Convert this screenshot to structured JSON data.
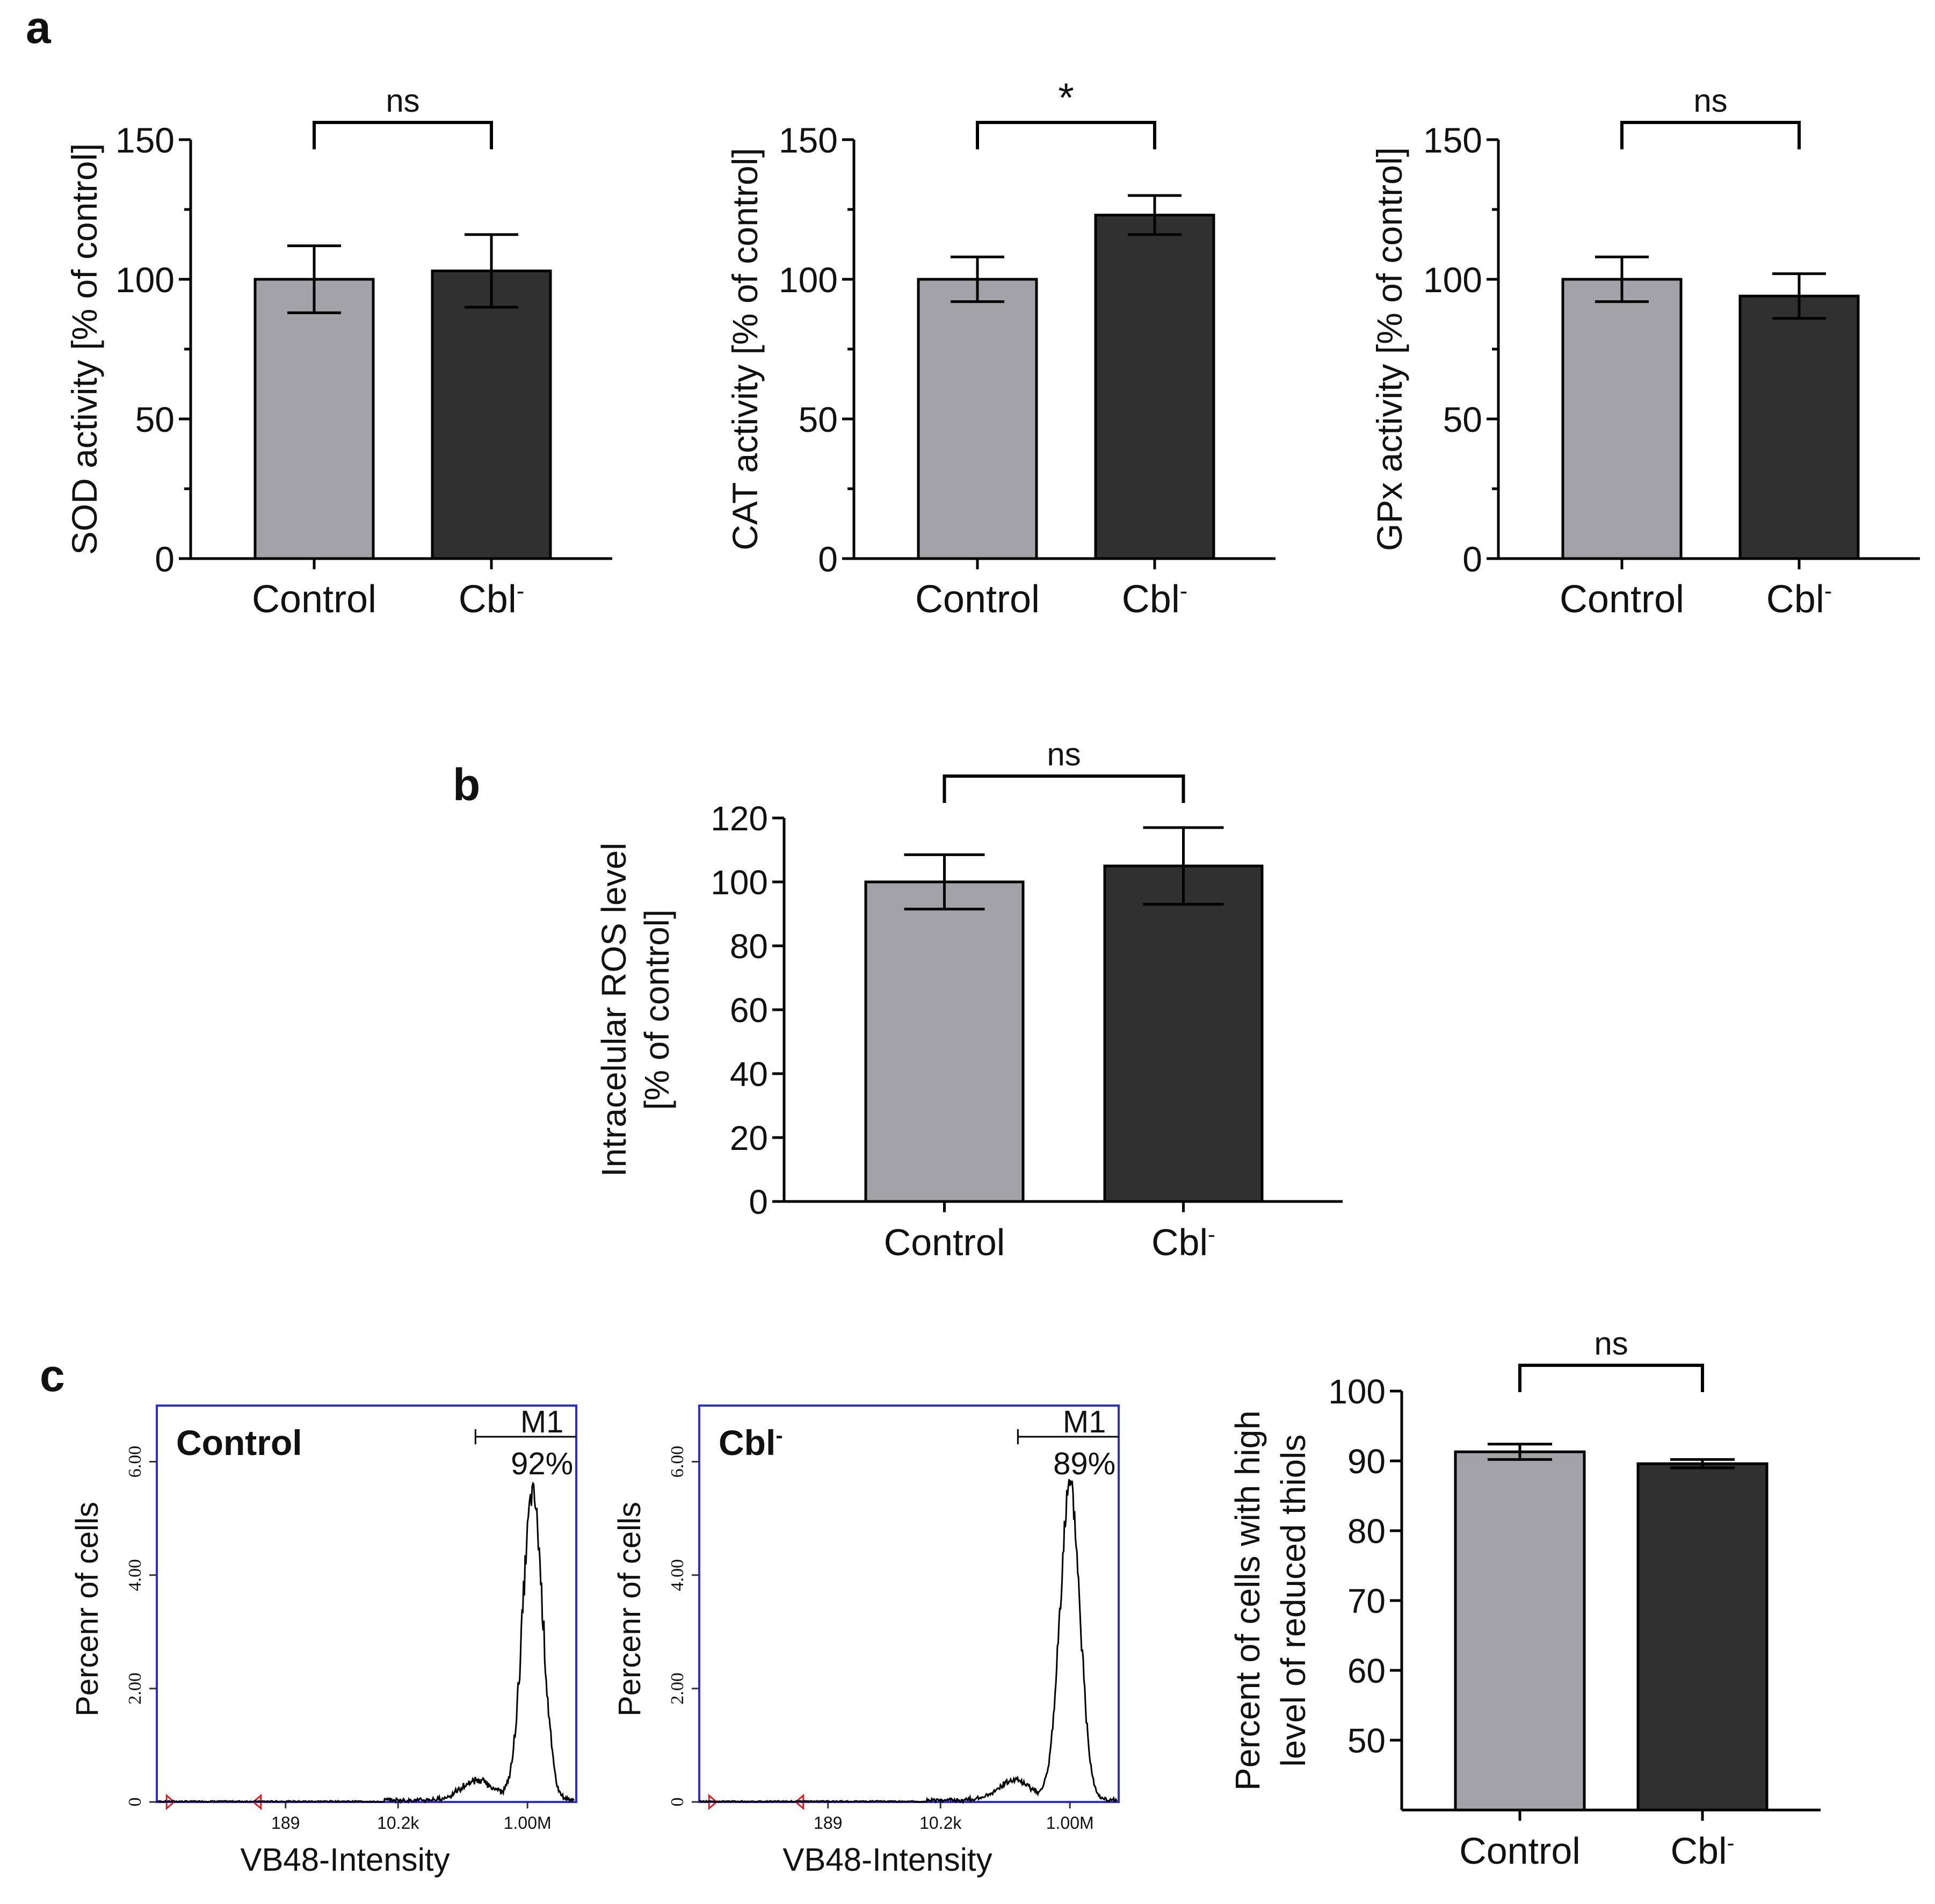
{
  "panel_labels": {
    "a": "a",
    "b": "b",
    "c": "c"
  },
  "colors": {
    "control": "#a3a3a7",
    "cbl": "#303030",
    "hist_frame": "#2d2dd6",
    "marker": "#d42020"
  },
  "chart_data": [
    {
      "id": "sod",
      "type": "bar",
      "ylabel": "SOD activity [% of control]",
      "ylim": [
        0,
        150
      ],
      "yticks": [
        0,
        50,
        100,
        150
      ],
      "categories": [
        {
          "main": "Control",
          "sup": ""
        },
        {
          "main": "Cbl",
          "sup": "-"
        }
      ],
      "values": [
        100,
        103
      ],
      "errors": [
        12,
        13
      ],
      "significance": "ns"
    },
    {
      "id": "cat",
      "type": "bar",
      "ylabel": "CAT activity [% of control]",
      "ylim": [
        0,
        150
      ],
      "yticks": [
        0,
        50,
        100,
        150
      ],
      "categories": [
        {
          "main": "Control",
          "sup": ""
        },
        {
          "main": "Cbl",
          "sup": "-"
        }
      ],
      "values": [
        100,
        123
      ],
      "errors": [
        8,
        7
      ],
      "significance": "*"
    },
    {
      "id": "gpx",
      "type": "bar",
      "ylabel": "GPx activity [% of control]",
      "ylim": [
        0,
        150
      ],
      "yticks": [
        0,
        50,
        100,
        150
      ],
      "categories": [
        {
          "main": "Control",
          "sup": ""
        },
        {
          "main": "Cbl",
          "sup": "-"
        }
      ],
      "values": [
        100,
        94
      ],
      "errors": [
        8,
        8
      ],
      "significance": "ns"
    },
    {
      "id": "ros",
      "type": "bar",
      "ylabel": [
        "Intracelular ROS level",
        "[% of control]"
      ],
      "ylim": [
        0,
        120
      ],
      "yticks": [
        0,
        20,
        40,
        60,
        80,
        100,
        120
      ],
      "categories": [
        {
          "main": "Control",
          "sup": ""
        },
        {
          "main": "Cbl",
          "sup": "-"
        }
      ],
      "values": [
        100,
        105
      ],
      "errors": [
        8.5,
        12
      ],
      "significance": "ns"
    },
    {
      "id": "hist_control",
      "type": "line",
      "title": {
        "main": "Control",
        "sup": ""
      },
      "xlabel": "VB48-Intensity",
      "ylabel": "Percenr of cells",
      "yticks": [
        "0",
        "2.00",
        "4.00",
        "6.00"
      ],
      "ylim": [
        0,
        6.8
      ],
      "xtick_labels": [
        "189",
        "10.2k",
        "1.00M"
      ],
      "gate": {
        "label": "M1",
        "percent": "92%"
      },
      "peak_log10": 6.08,
      "peak_height": 5.4
    },
    {
      "id": "hist_cbl",
      "type": "line",
      "title": {
        "main": "Cbl",
        "sup": "-"
      },
      "xlabel": "VB48-Intensity",
      "ylabel": "Percenr of cells",
      "yticks": [
        "0",
        "2.00",
        "4.00",
        "6.00"
      ],
      "ylim": [
        0,
        6.8
      ],
      "xtick_labels": [
        "189",
        "10.2k",
        "1.00M"
      ],
      "gate": {
        "label": "M1",
        "percent": "89%"
      },
      "peak_log10": 6.0,
      "peak_height": 5.5
    },
    {
      "id": "thiols",
      "type": "bar",
      "ylabel": [
        "Percent of cells with high",
        "level of reduced thiols"
      ],
      "ylim": [
        40,
        100
      ],
      "yticks": [
        50,
        60,
        70,
        80,
        90,
        100
      ],
      "categories": [
        {
          "main": "Control",
          "sup": ""
        },
        {
          "main": "Cbl",
          "sup": "-"
        }
      ],
      "values": [
        91.3,
        89.6
      ],
      "errors": [
        1.1,
        0.6
      ],
      "significance": "ns"
    }
  ]
}
